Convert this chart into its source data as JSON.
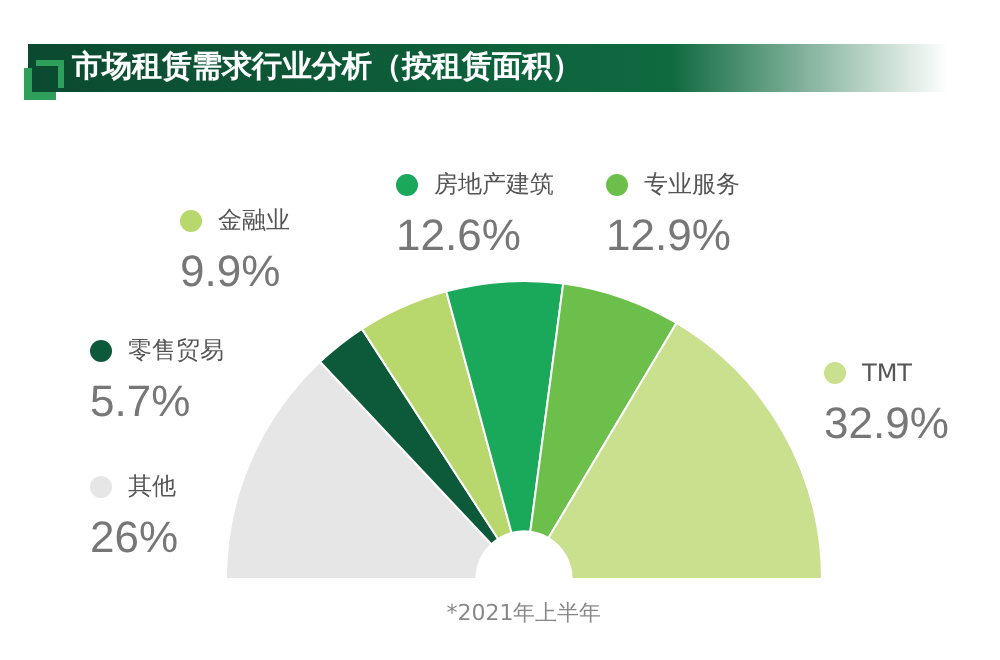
{
  "chart_data": {
    "type": "donut",
    "title": "市场租赁需求行业分析（按租赁面积）",
    "categories": [
      "其他",
      "零售贸易",
      "金融业",
      "房地产建筑",
      "专业服务",
      "TMT"
    ],
    "values": [
      26,
      5.7,
      9.9,
      12.6,
      12.9,
      32.9
    ],
    "value_labels": [
      "26%",
      "5.7%",
      "9.9%",
      "12.6%",
      "12.9%",
      "32.9%"
    ],
    "colors": [
      "#e6e6e6",
      "#0d5a3a",
      "#b8d76c",
      "#1aa85a",
      "#6cbf4a",
      "#c9e08f"
    ],
    "legend": "left",
    "annotations": [
      "*2021年上半年"
    ]
  }
}
